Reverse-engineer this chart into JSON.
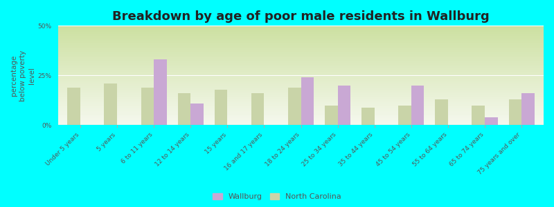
{
  "title": "Breakdown by age of poor male residents in Wallburg",
  "ylabel": "percentage\nbelow poverty\nlevel",
  "categories": [
    "Under 5 years",
    "5 years",
    "6 to 11 years",
    "12 to 14 years",
    "15 years",
    "16 and 17 years",
    "18 to 24 years",
    "25 to 34 years",
    "35 to 44 years",
    "45 to 54 years",
    "55 to 64 years",
    "65 to 74 years",
    "75 years and over"
  ],
  "wallburg": [
    0,
    0,
    33,
    11,
    0,
    0,
    24,
    20,
    0,
    20,
    0,
    4,
    16
  ],
  "north_carolina": [
    19,
    21,
    19,
    16,
    18,
    16,
    19,
    10,
    9,
    10,
    13,
    10,
    13
  ],
  "wallburg_color": "#c9a8d4",
  "nc_color": "#c9d4a8",
  "ylim": [
    0,
    50
  ],
  "yticks": [
    0,
    25,
    50
  ],
  "ytick_labels": [
    "0%",
    "25%",
    "50%"
  ],
  "bg_color": "#00ffff",
  "plot_bg_top": "#cce0a0",
  "plot_bg_bottom": "#f5f8ee",
  "title_fontsize": 13,
  "axis_label_fontsize": 7.5,
  "tick_fontsize": 6.5,
  "bar_width": 0.35,
  "legend_wallburg": "Wallburg",
  "legend_nc": "North Carolina"
}
